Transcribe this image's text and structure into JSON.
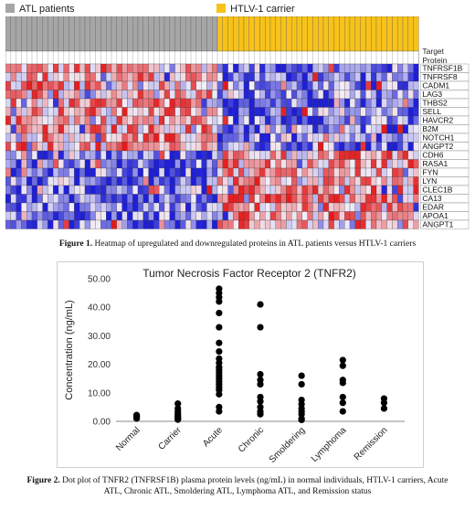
{
  "legend": {
    "atl": {
      "label": "ATL patients",
      "color": "#a6a6a6"
    },
    "htlv": {
      "label": "HTLV-1 carrier",
      "color": "#f7c21a"
    }
  },
  "heatmap": {
    "target_header": "Target\nProtein",
    "atl_sample_count": 40,
    "htlv_sample_count": 38,
    "colors": {
      "high": "#e31a1c",
      "mid": "#f2f0f7",
      "low": "#1f1fd6"
    },
    "proteins": [
      "TNFRSF1B",
      "TNFRSF8",
      "CADM1",
      "LAG3",
      "THBS2",
      "SELL",
      "HAVCR2",
      "B2M",
      "NOTCH1",
      "ANGPT2",
      "CDH6",
      "RASA1",
      "FYN",
      "LYN",
      "CLEC1B",
      "CA13",
      "EDAR",
      "APOA1",
      "ANGPT1"
    ]
  },
  "figure1_caption": {
    "label": "Figure 1.",
    "text": "Heatmap of upregulated and downregulated proteins in ATL patients versus HTLV-1 carriers"
  },
  "chart_data": {
    "type": "scatter",
    "title": "Tumor Necrosis Factor Receptor 2 (TNFR2)",
    "xlabel": "",
    "ylabel": "Concentration (ng/mL)",
    "ylim": [
      0,
      50
    ],
    "yticks": [
      "0.00",
      "10.00",
      "20.00",
      "30.00",
      "40.00",
      "50.00"
    ],
    "categories": [
      "Normal",
      "Carrier",
      "Acute",
      "Chronic",
      "Smoldering",
      "Lymphoma",
      "Remission"
    ],
    "series": [
      {
        "values": [
          [
            2.2,
            1.9,
            1.7,
            1.5,
            1.2,
            1.0
          ],
          [
            6.2,
            4.5,
            3.5,
            2.7,
            2.1,
            1.6,
            1.2,
            0.9,
            0.6
          ],
          [
            46.5,
            45.0,
            43.5,
            42.0,
            38.0,
            33.0,
            27.5,
            24.5,
            22.0,
            20.5,
            19.0,
            18.0,
            17.0,
            16.0,
            15.0,
            14.0,
            13.0,
            12.0,
            11.0,
            9.5,
            5.0,
            3.5
          ],
          [
            41.0,
            33.0,
            16.5,
            14.5,
            13.0,
            8.5,
            7.0,
            5.0,
            3.5,
            2.5
          ],
          [
            16.0,
            13.0,
            7.5,
            6.0,
            4.5,
            3.5,
            2.5,
            1.0,
            0.5
          ],
          [
            21.5,
            19.5,
            14.5,
            13.5,
            8.5,
            6.5,
            3.5
          ],
          [
            8.0,
            6.5,
            4.5
          ]
        ]
      }
    ],
    "dot_color": "#000000"
  },
  "figure2_caption": {
    "label": "Figure 2.",
    "text": "Dot plot of TNFR2 (TNFRSF1B) plasma protein levels (ng/mL) in normal individuals, HTLV-1 carriers, Acute ATL, Chronic ATL, Smoldering ATL, Lymphoma ATL, and Remission status"
  }
}
